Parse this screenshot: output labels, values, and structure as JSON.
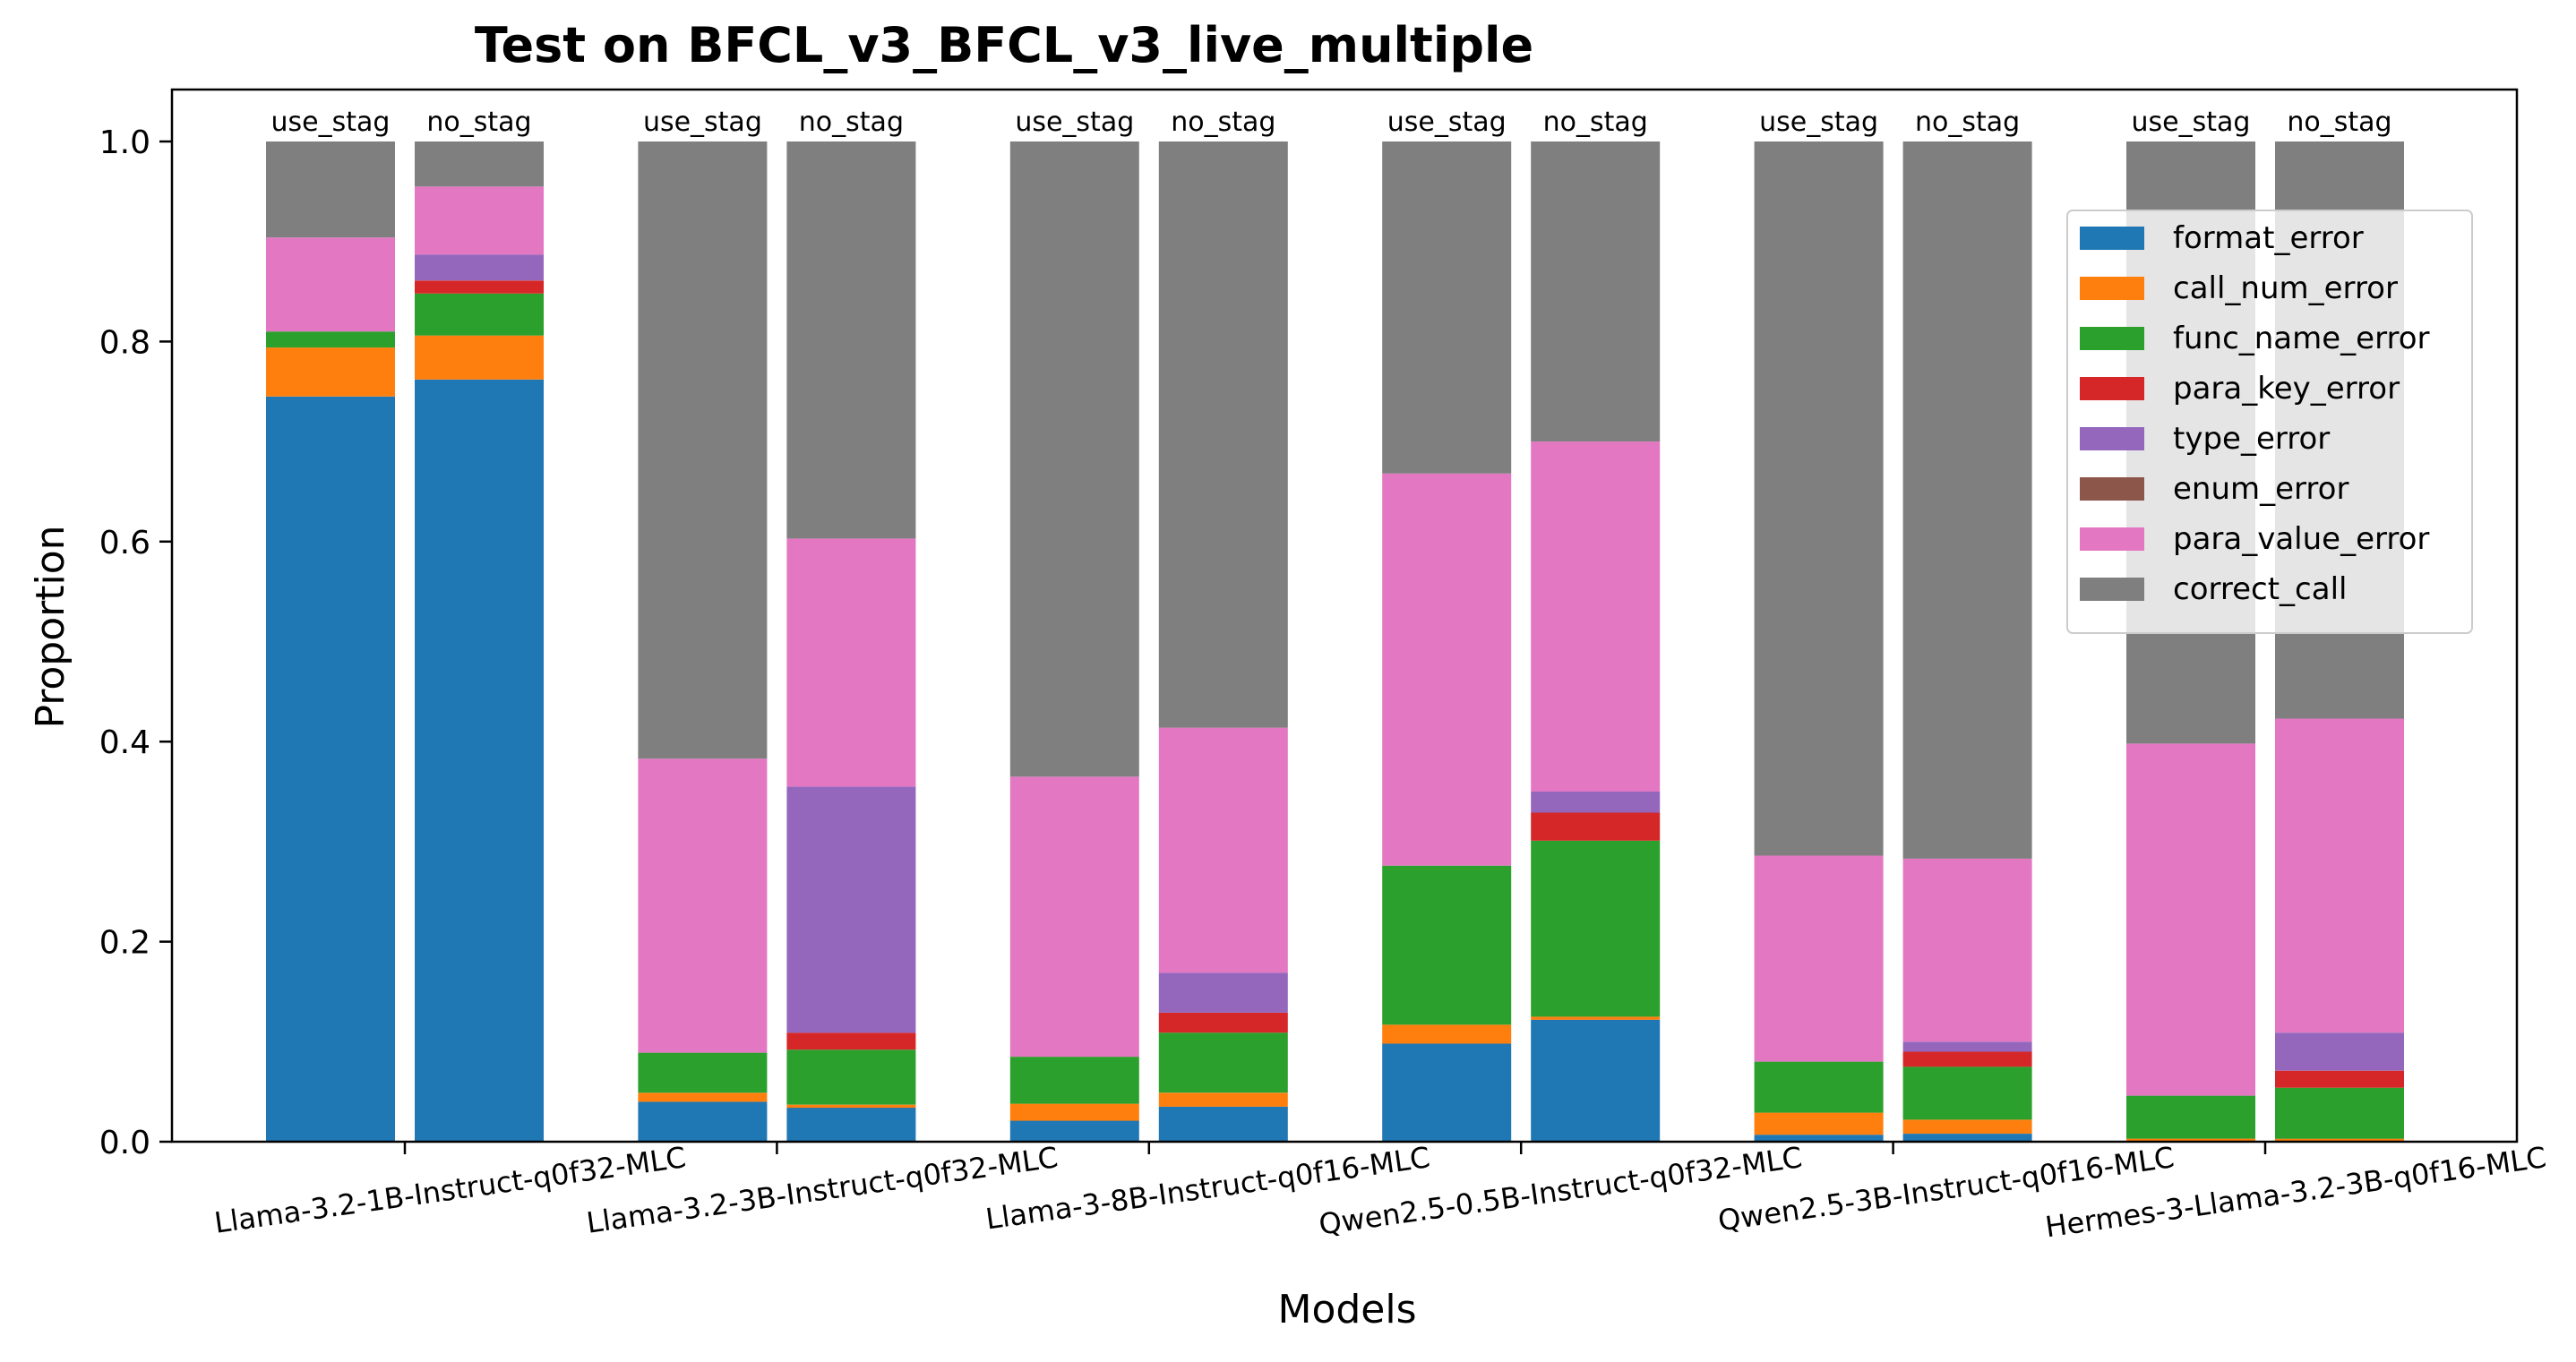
{
  "chart_data": {
    "type": "bar",
    "stacked": true,
    "title": "Test on BFCL_v3_BFCL_v3_live_multiple",
    "xlabel": "Models",
    "ylabel": "Proportion",
    "ylim": [
      0,
      1.04
    ],
    "yticks": [
      "0.0",
      "0.2",
      "0.4",
      "0.6",
      "0.8",
      "1.0"
    ],
    "grid": false,
    "legend_position": "upper-right",
    "categories": [
      "Llama-3.2-1B-Instruct-q0f32-MLC",
      "Llama-3.2-3B-Instruct-q0f32-MLC",
      "Llama-3-8B-Instruct-q0f16-MLC",
      "Qwen2.5-0.5B-Instruct-q0f32-MLC",
      "Qwen2.5-3B-Instruct-q0f16-MLC",
      "Hermes-3-Llama-3.2-3B-q0f16-MLC"
    ],
    "variants": [
      "use_stag",
      "no_stag"
    ],
    "series": [
      {
        "name": "format_error",
        "color": "#1f77b4",
        "values": [
          [
            0.745,
            0.762
          ],
          [
            0.04,
            0.034
          ],
          [
            0.021,
            0.035
          ],
          [
            0.098,
            0.122
          ],
          [
            0.007,
            0.008
          ],
          [
            0.0,
            0.0
          ]
        ]
      },
      {
        "name": "call_num_error",
        "color": "#ff7f0e",
        "values": [
          [
            0.049,
            0.044
          ],
          [
            0.009,
            0.003
          ],
          [
            0.017,
            0.014
          ],
          [
            0.019,
            0.003
          ],
          [
            0.022,
            0.014
          ],
          [
            0.003,
            0.003
          ]
        ]
      },
      {
        "name": "func_name_error",
        "color": "#2ca02c",
        "values": [
          [
            0.016,
            0.042
          ],
          [
            0.04,
            0.055
          ],
          [
            0.047,
            0.06
          ],
          [
            0.159,
            0.176
          ],
          [
            0.051,
            0.053
          ],
          [
            0.043,
            0.051
          ]
        ]
      },
      {
        "name": "para_key_error",
        "color": "#d62728",
        "values": [
          [
            0.0,
            0.013
          ],
          [
            0.0,
            0.017
          ],
          [
            0.0,
            0.02
          ],
          [
            0.0,
            0.028
          ],
          [
            0.0,
            0.015
          ],
          [
            0.0,
            0.017
          ]
        ]
      },
      {
        "name": "type_error",
        "color": "#9467bd",
        "values": [
          [
            0.0,
            0.026
          ],
          [
            0.0,
            0.246
          ],
          [
            0.0,
            0.04
          ],
          [
            0.0,
            0.021
          ],
          [
            0.0,
            0.01
          ],
          [
            0.0,
            0.038
          ]
        ]
      },
      {
        "name": "enum_error",
        "color": "#8c564b",
        "values": [
          [
            0.0,
            0.0
          ],
          [
            0.0,
            0.0
          ],
          [
            0.0,
            0.0
          ],
          [
            0.0,
            0.0
          ],
          [
            0.0,
            0.0
          ],
          [
            0.0,
            0.0
          ]
        ]
      },
      {
        "name": "para_value_error",
        "color": "#e377c2",
        "values": [
          [
            0.094,
            0.068
          ],
          [
            0.294,
            0.248
          ],
          [
            0.28,
            0.245
          ],
          [
            0.392,
            0.35
          ],
          [
            0.206,
            0.183
          ],
          [
            0.352,
            0.314
          ]
        ]
      },
      {
        "name": "correct_call",
        "color": "#7f7f7f",
        "values": [
          [
            0.096,
            0.045
          ],
          [
            0.617,
            0.397
          ],
          [
            0.635,
            0.586
          ],
          [
            0.332,
            0.3
          ],
          [
            0.714,
            0.717
          ],
          [
            0.602,
            0.577
          ]
        ]
      }
    ]
  }
}
